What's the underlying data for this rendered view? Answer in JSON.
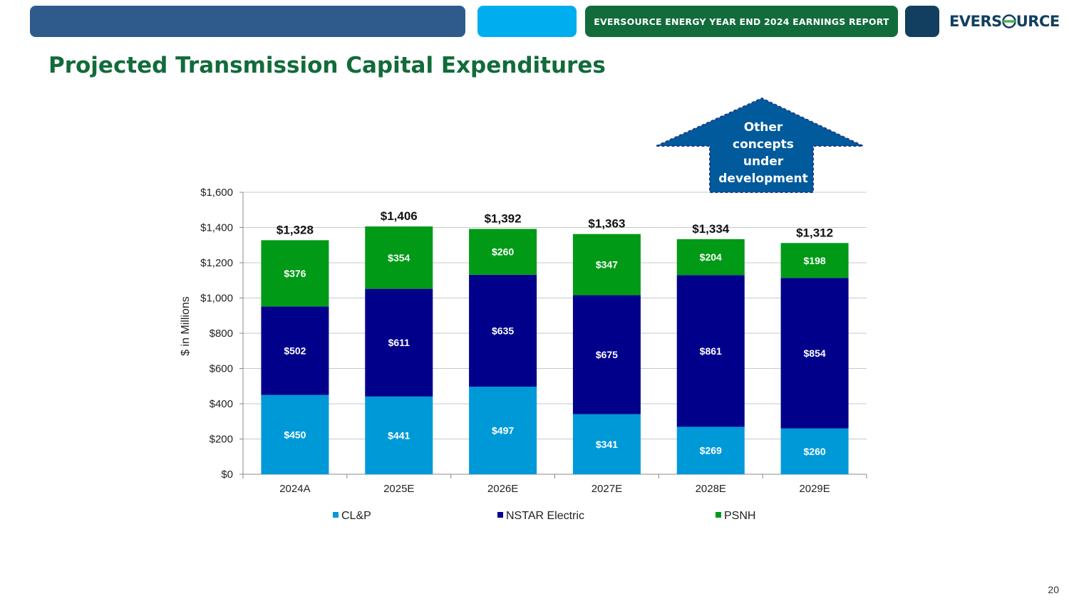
{
  "header": {
    "report_title": "EVERSOURCE ENERGY YEAR END 2024 EARNINGS REPORT",
    "logo_text_left": "EVERS",
    "logo_text_right": "URCE",
    "colors": {
      "bar1": "#2e5b8c",
      "bar2": "#00aeef",
      "report": "#126b3a",
      "bar3": "#123f60"
    }
  },
  "page": {
    "title": "Projected Transmission Capital Expenditures",
    "number": "20"
  },
  "callout": {
    "lines": [
      "Other",
      "concepts",
      "under",
      "development"
    ],
    "color": "#005a9c"
  },
  "chart_data": {
    "type": "bar",
    "stacked": true,
    "categories": [
      "2024A",
      "2025E",
      "2026E",
      "2027E",
      "2028E",
      "2029E"
    ],
    "series": [
      {
        "name": "CL&P",
        "color": "#0099d8",
        "values": [
          450,
          441,
          497,
          341,
          269,
          260
        ],
        "labels": [
          "$450",
          "$441",
          "$497",
          "$341",
          "$269",
          "$260"
        ]
      },
      {
        "name": "NSTAR Electric",
        "color": "#00008b",
        "values": [
          502,
          611,
          635,
          675,
          861,
          854
        ],
        "labels": [
          "$502",
          "$611",
          "$635",
          "$675",
          "$861",
          "$854"
        ]
      },
      {
        "name": "PSNH",
        "color": "#009a17",
        "values": [
          376,
          354,
          260,
          347,
          204,
          198
        ],
        "labels": [
          "$376",
          "$354",
          "$260",
          "$347",
          "$204",
          "$198"
        ]
      }
    ],
    "totals": [
      1328,
      1406,
      1392,
      1363,
      1334,
      1312
    ],
    "total_labels": [
      "$1,328",
      "$1,406",
      "$1,392",
      "$1,363",
      "$1,334",
      "$1,312"
    ],
    "ylabel": "$ in Millions",
    "xlabel": "",
    "ylim": [
      0,
      1600
    ],
    "yticks": [
      0,
      200,
      400,
      600,
      800,
      1000,
      1200,
      1400,
      1600
    ],
    "ytick_labels": [
      "$0",
      "$200",
      "$400",
      "$600",
      "$800",
      "$1,000",
      "$1,200",
      "$1,400",
      "$1,600"
    ],
    "grid": true,
    "legend_position": "bottom"
  }
}
